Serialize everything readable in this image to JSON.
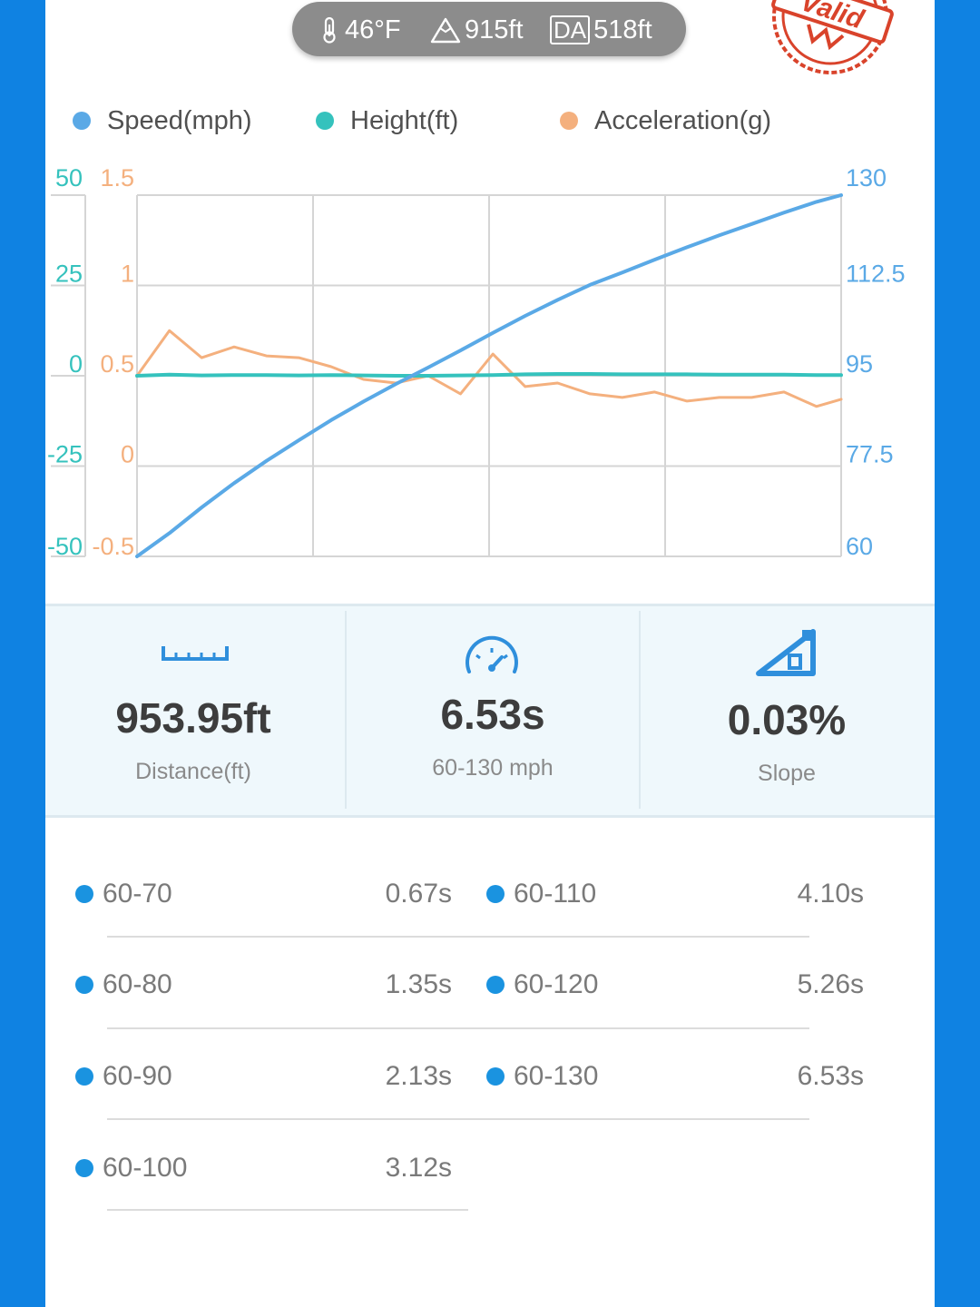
{
  "header": {
    "temperature": "46°F",
    "elevation": "915ft",
    "da_badge": "DA",
    "density_altitude": "518ft",
    "stamp_text": "Valid",
    "thermometer_icon": "thermometer-icon",
    "mountain_icon": "mountain-icon"
  },
  "colors": {
    "frame": "#0f82e2",
    "speed": "#5aa9e6",
    "height": "#35c2bd",
    "acceleration": "#f4b07e",
    "stamp": "#d9432b",
    "bullet": "#1a93e0"
  },
  "chart_data": {
    "type": "line",
    "legend_position": "top",
    "grid": true,
    "x": [
      0,
      0.3,
      0.6,
      0.9,
      1.2,
      1.5,
      1.8,
      2.1,
      2.4,
      2.7,
      3.0,
      3.3,
      3.6,
      3.9,
      4.2,
      4.5,
      4.8,
      5.1,
      5.4,
      5.7,
      6.0,
      6.3,
      6.53
    ],
    "series": [
      {
        "name": "Speed(mph)",
        "axis": "right",
        "ylim": [
          60,
          130
        ],
        "values": [
          60,
          64.5,
          69.5,
          74.2,
          78.5,
          82.5,
          86.4,
          90.0,
          93.4,
          96.6,
          99.9,
          103.3,
          106.6,
          109.7,
          112.6,
          115.0,
          117.5,
          119.9,
          122.2,
          124.4,
          126.6,
          128.7,
          130
        ]
      },
      {
        "name": "Height(ft)",
        "axis": "left_outer",
        "ylim": [
          -50,
          50
        ],
        "values": [
          0,
          0.3,
          0.1,
          0.2,
          0.2,
          0.1,
          0.2,
          0.1,
          0.0,
          0.0,
          0.1,
          0.2,
          0.4,
          0.5,
          0.5,
          0.4,
          0.4,
          0.4,
          0.3,
          0.3,
          0.3,
          0.2,
          0.2
        ]
      },
      {
        "name": "Acceleration(g)",
        "axis": "left_inner",
        "ylim": [
          -0.5,
          1.5
        ],
        "values": [
          0.5,
          0.75,
          0.6,
          0.66,
          0.61,
          0.6,
          0.55,
          0.48,
          0.46,
          0.5,
          0.4,
          0.62,
          0.44,
          0.46,
          0.4,
          0.38,
          0.41,
          0.36,
          0.38,
          0.38,
          0.41,
          0.33,
          0.37
        ]
      }
    ],
    "left_outer_ticks": [
      "50",
      "25",
      "0",
      "-25",
      "-50"
    ],
    "left_inner_ticks": [
      "1.5",
      "1",
      "0.5",
      "0",
      "-0.5"
    ],
    "right_ticks": [
      "130",
      "112.5",
      "95",
      "77.5",
      "60"
    ]
  },
  "stats": [
    {
      "icon": "ruler-icon",
      "value": "953.95ft",
      "label": "Distance(ft)"
    },
    {
      "icon": "speedometer-icon",
      "value": "6.53s",
      "label": "60-130 mph"
    },
    {
      "icon": "slope-icon",
      "value": "0.03%",
      "label": "Slope"
    }
  ],
  "splits_left": [
    {
      "range": "60-70",
      "time": "0.67s"
    },
    {
      "range": "60-80",
      "time": "1.35s"
    },
    {
      "range": "60-90",
      "time": "2.13s"
    },
    {
      "range": "60-100",
      "time": "3.12s"
    }
  ],
  "splits_right": [
    {
      "range": "60-110",
      "time": "4.10s"
    },
    {
      "range": "60-120",
      "time": "5.26s"
    },
    {
      "range": "60-130",
      "time": "6.53s"
    }
  ]
}
